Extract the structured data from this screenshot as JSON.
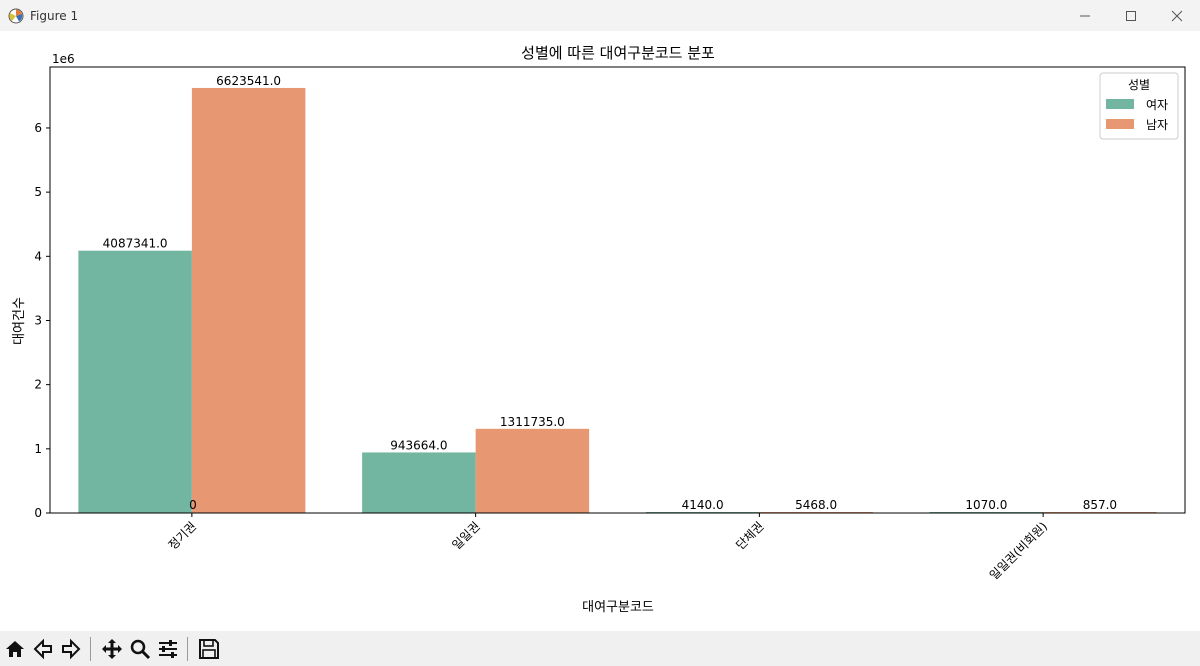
{
  "window": {
    "title": "Figure 1"
  },
  "toolbar": {
    "items": [
      "home-icon",
      "back-icon",
      "forward-icon",
      "pan-icon",
      "zoom-icon",
      "configure-subplots-icon",
      "save-icon"
    ]
  },
  "colors": {
    "female": "#72b5a1",
    "male": "#e89773"
  },
  "chart_data": {
    "type": "bar",
    "title": "성별에 따른 대여구분코드 분포",
    "xlabel": "대여구분코드",
    "ylabel": "대여건수",
    "y_offset_label": "1e6",
    "ylim": [
      0,
      6950000
    ],
    "yticks": [
      0,
      1000000,
      2000000,
      3000000,
      4000000,
      5000000,
      6000000
    ],
    "ytick_labels": [
      "0",
      "1",
      "2",
      "3",
      "4",
      "5",
      "6"
    ],
    "categories": [
      "정기권",
      "일일권",
      "단체권",
      "일일권(비회원)"
    ],
    "legend": {
      "title": "성별",
      "placement": "top-right"
    },
    "series": [
      {
        "name": "여자",
        "values": [
          4087341,
          943664,
          4140,
          1070
        ],
        "labels": [
          "4087341.0",
          "943664.0",
          "4140.0",
          "1070.0"
        ]
      },
      {
        "name": "남자",
        "values": [
          6623541,
          1311735,
          5468,
          857
        ],
        "labels": [
          "6623541.0",
          "1311735.0",
          "5468.0",
          "857.0"
        ]
      }
    ],
    "annotations": [
      "0"
    ]
  }
}
